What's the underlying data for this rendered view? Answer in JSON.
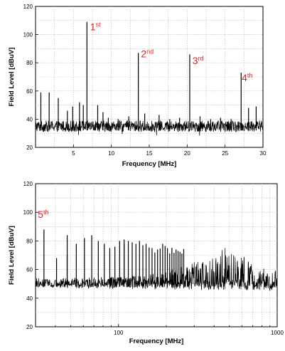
{
  "colors": {
    "annotation": "#e02020",
    "trace": "#000000",
    "grid": "#b8b8b8"
  },
  "chart_data": [
    {
      "type": "line",
      "xlabel": "Frequency [MHz]",
      "ylabel": "Field Level [dBuV]",
      "xscale": "linear",
      "xlim": [
        0,
        30
      ],
      "ylim": [
        20,
        120
      ],
      "xticks": [
        5,
        10,
        15,
        20,
        25,
        30
      ],
      "xtick_labels": [
        "5",
        "10",
        "15",
        "20",
        "25",
        "30"
      ],
      "yticks": [
        20,
        40,
        60,
        80,
        100,
        120
      ],
      "ytick_labels": [
        "20",
        "40",
        "60",
        "80",
        "100",
        "120"
      ],
      "grid": true,
      "noise_floor": 34,
      "noise_band": [
        31,
        39
      ],
      "peaks": [
        {
          "x": 0.7,
          "y": 59
        },
        {
          "x": 1.8,
          "y": 59
        },
        {
          "x": 3.0,
          "y": 55
        },
        {
          "x": 4.2,
          "y": 46
        },
        {
          "x": 4.9,
          "y": 49
        },
        {
          "x": 5.8,
          "y": 52
        },
        {
          "x": 6.3,
          "y": 50
        },
        {
          "x": 6.78,
          "y": 109
        },
        {
          "x": 8.2,
          "y": 50
        },
        {
          "x": 8.9,
          "y": 45
        },
        {
          "x": 9.6,
          "y": 41
        },
        {
          "x": 10.9,
          "y": 40
        },
        {
          "x": 12.3,
          "y": 42
        },
        {
          "x": 13.56,
          "y": 87
        },
        {
          "x": 14.4,
          "y": 44
        },
        {
          "x": 16.3,
          "y": 43
        },
        {
          "x": 17.7,
          "y": 40
        },
        {
          "x": 19.0,
          "y": 41
        },
        {
          "x": 20.34,
          "y": 86
        },
        {
          "x": 21.7,
          "y": 42
        },
        {
          "x": 23.1,
          "y": 40
        },
        {
          "x": 24.4,
          "y": 41
        },
        {
          "x": 25.8,
          "y": 40
        },
        {
          "x": 27.12,
          "y": 73
        },
        {
          "x": 28.1,
          "y": 48
        },
        {
          "x": 29.1,
          "y": 49
        }
      ],
      "annotations": [
        {
          "text": "1",
          "sup": "st",
          "x": 7.2,
          "y": 103
        },
        {
          "text": "2",
          "sup": "nd",
          "x": 13.9,
          "y": 84
        },
        {
          "text": "3",
          "sup": "rd",
          "x": 20.7,
          "y": 79
        },
        {
          "text": "4",
          "sup": "th",
          "x": 27.2,
          "y": 67
        }
      ]
    },
    {
      "type": "line",
      "xlabel": "Frequency [MHz]",
      "ylabel": "Field Level [dBuV]",
      "xscale": "log",
      "xlim": [
        30,
        1000
      ],
      "ylim": [
        20,
        120
      ],
      "xticks": [
        100,
        1000
      ],
      "xtick_labels": [
        "100",
        "1000"
      ],
      "yticks": [
        20,
        40,
        60,
        80,
        100,
        120
      ],
      "ytick_labels": [
        "20",
        "40",
        "60",
        "80",
        "100",
        "120"
      ],
      "grid": true,
      "noise_floor_start": 50,
      "noise_floor_end": 48,
      "spike_spacing_mhz": 6.78,
      "spike_start_mhz": 33.9,
      "spike_stop_mhz": 260,
      "envelope": [
        {
          "x": 30,
          "y": 53
        },
        {
          "x": 150,
          "y": 56
        },
        {
          "x": 250,
          "y": 62
        },
        {
          "x": 350,
          "y": 68
        },
        {
          "x": 480,
          "y": 77
        },
        {
          "x": 600,
          "y": 70
        },
        {
          "x": 750,
          "y": 62
        },
        {
          "x": 1000,
          "y": 60
        }
      ],
      "peaks": [
        {
          "x": 33.9,
          "y": 88
        },
        {
          "x": 40.7,
          "y": 68
        },
        {
          "x": 47.5,
          "y": 84
        },
        {
          "x": 54.2,
          "y": 78
        },
        {
          "x": 61.0,
          "y": 82
        },
        {
          "x": 67.8,
          "y": 84
        },
        {
          "x": 74.6,
          "y": 80
        },
        {
          "x": 81.4,
          "y": 78
        },
        {
          "x": 88.1,
          "y": 75
        },
        {
          "x": 94.9,
          "y": 76
        },
        {
          "x": 101.7,
          "y": 80
        },
        {
          "x": 108.5,
          "y": 81
        },
        {
          "x": 115.3,
          "y": 80
        },
        {
          "x": 122.0,
          "y": 79
        },
        {
          "x": 128.8,
          "y": 78
        },
        {
          "x": 135.6,
          "y": 80
        },
        {
          "x": 142.4,
          "y": 77
        },
        {
          "x": 149.2,
          "y": 78
        },
        {
          "x": 162.7,
          "y": 75
        },
        {
          "x": 176.3,
          "y": 74
        },
        {
          "x": 189.8,
          "y": 78
        },
        {
          "x": 203.4,
          "y": 75
        },
        {
          "x": 230.5,
          "y": 74
        }
      ],
      "annotations": [
        {
          "text": "5",
          "sup": "th",
          "x": 31,
          "y": 96
        }
      ]
    }
  ]
}
